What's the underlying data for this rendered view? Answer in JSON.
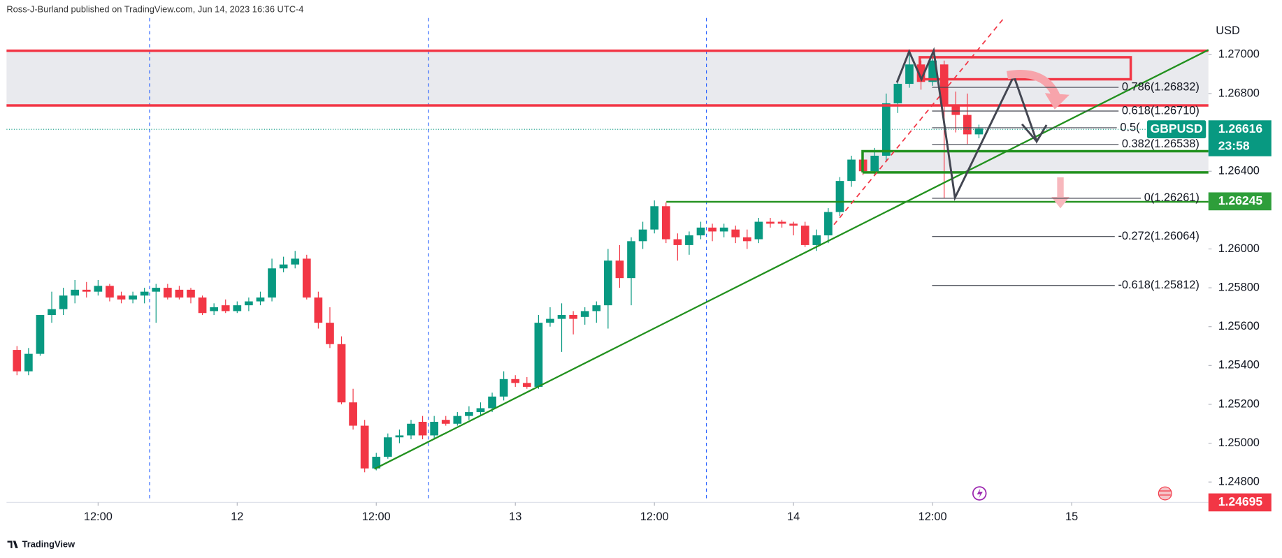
{
  "header": "Ross-J-Burland published on TradingView.com, Jun 14, 2023 16:36 UTC-4",
  "footer": "TradingView",
  "chart_data": {
    "type": "candlestick",
    "symbol": "GBPUSD",
    "currency": "USD",
    "up_color": "#089981",
    "down_color": "#f23645",
    "open": [
      1.2548,
      1.2537,
      1.2546,
      1.2566,
      1.2569,
      1.2576,
      1.2579,
      1.2578,
      1.2581,
      1.2576,
      1.2574,
      1.2576,
      1.2578,
      1.258,
      1.2579,
      1.2579,
      1.2575,
      1.2568,
      1.2571,
      1.2568,
      1.2571,
      1.2573,
      1.2575,
      1.259,
      1.2592,
      1.2595,
      1.2575,
      1.2562,
      1.2551,
      1.2521,
      1.2509,
      1.2487,
      1.2493,
      1.2503,
      1.2504,
      1.2511,
      1.2504,
      1.2512,
      1.251,
      1.2514,
      1.2516,
      1.2518,
      1.2524,
      1.2533,
      1.2531,
      1.2529,
      1.2562,
      1.2564,
      1.2566,
      1.2565,
      1.2568,
      1.2571,
      1.2594,
      1.2585,
      1.2604,
      1.261,
      1.2622,
      1.2605,
      1.2602,
      1.2607,
      1.2611,
      1.2609,
      1.261,
      1.2606,
      1.2605,
      1.2614,
      1.2614,
      1.2613,
      1.2612,
      1.2602,
      1.2607,
      1.2619,
      1.2635,
      1.2646,
      1.264,
      1.2648,
      1.2675,
      1.2685,
      1.2695,
      1.2686,
      1.2695,
      1.2674,
      1.2669,
      1.2659
    ],
    "high": [
      1.255,
      1.2549,
      1.2566,
      1.2578,
      1.258,
      1.2584,
      1.2583,
      1.2584,
      1.2582,
      1.2578,
      1.2578,
      1.258,
      1.2582,
      1.2582,
      1.2581,
      1.258,
      1.2576,
      1.2572,
      1.2574,
      1.2573,
      1.2575,
      1.2578,
      1.2595,
      1.2596,
      1.2599,
      1.2597,
      1.2578,
      1.257,
      1.2555,
      1.2528,
      1.2512,
      1.2495,
      1.2505,
      1.2507,
      1.2512,
      1.2514,
      1.2514,
      1.2514,
      1.2516,
      1.2519,
      1.2521,
      1.2526,
      1.2537,
      1.2535,
      1.2534,
      1.2566,
      1.257,
      1.2572,
      1.2568,
      1.257,
      1.2573,
      1.26,
      1.2602,
      1.2606,
      1.2614,
      1.2625,
      1.2624,
      1.2608,
      1.2609,
      1.2614,
      1.2613,
      1.2613,
      1.2612,
      1.261,
      1.2616,
      1.2616,
      1.2615,
      1.2614,
      1.2614,
      1.261,
      1.2621,
      1.2637,
      1.2648,
      1.2648,
      1.2652,
      1.268,
      1.2688,
      1.27,
      1.2697,
      1.2701,
      1.2697,
      1.2681,
      1.268,
      1.2664
    ],
    "low": [
      1.2535,
      1.2535,
      1.2545,
      1.2562,
      1.2566,
      1.2572,
      1.2575,
      1.2576,
      1.2573,
      1.2572,
      1.2572,
      1.2572,
      1.2562,
      1.2574,
      1.2574,
      1.2572,
      1.2566,
      1.2566,
      1.2567,
      1.2567,
      1.2568,
      1.2571,
      1.2573,
      1.2588,
      1.259,
      1.2574,
      1.2559,
      1.2549,
      1.252,
      1.2507,
      1.2485,
      1.2486,
      1.2492,
      1.25,
      1.2502,
      1.2502,
      1.2502,
      1.2509,
      1.2509,
      1.2512,
      1.2514,
      1.2516,
      1.2522,
      1.2529,
      1.2528,
      1.2528,
      1.256,
      1.2547,
      1.2556,
      1.2561,
      1.2562,
      1.2559,
      1.258,
      1.2571,
      1.26,
      1.2608,
      1.2603,
      1.2594,
      1.2597,
      1.2605,
      1.2604,
      1.2606,
      1.2603,
      1.26,
      1.2603,
      1.2611,
      1.2611,
      1.2607,
      1.2601,
      1.2599,
      1.2603,
      1.2617,
      1.2632,
      1.2638,
      1.2638,
      1.2645,
      1.267,
      1.2683,
      1.2682,
      1.2684,
      1.2626,
      1.266,
      1.2654,
      1.2657
    ],
    "close": [
      1.2537,
      1.2546,
      1.2566,
      1.2569,
      1.2576,
      1.2579,
      1.2578,
      1.2581,
      1.2575,
      1.2574,
      1.2576,
      1.2578,
      1.258,
      1.2575,
      1.2575,
      1.2575,
      1.2567,
      1.257,
      1.2568,
      1.2571,
      1.2573,
      1.2575,
      1.259,
      1.2592,
      1.2595,
      1.2575,
      1.2562,
      1.2551,
      1.2521,
      1.2509,
      1.2487,
      1.2493,
      1.2503,
      1.2504,
      1.251,
      1.2504,
      1.2511,
      1.251,
      1.2514,
      1.2516,
      1.2518,
      1.2524,
      1.2533,
      1.2531,
      1.2529,
      1.2562,
      1.2564,
      1.2566,
      1.2564,
      1.2568,
      1.2571,
      1.2594,
      1.2585,
      1.2604,
      1.261,
      1.2622,
      1.2605,
      1.2602,
      1.2607,
      1.2611,
      1.2609,
      1.2611,
      1.2606,
      1.2604,
      1.2614,
      1.2613,
      1.2613,
      1.2612,
      1.2602,
      1.2607,
      1.2619,
      1.2635,
      1.2646,
      1.264,
      1.2648,
      1.2675,
      1.2685,
      1.2695,
      1.2686,
      1.2697,
      1.2674,
      1.2669,
      1.2659,
      1.2662
    ],
    "xlim": [
      -0.9,
      102.8
    ],
    "xticks": [
      {
        "value": 7,
        "label": "12:00"
      },
      {
        "value": 19,
        "label": "12"
      },
      {
        "value": 31,
        "label": "12:00"
      },
      {
        "value": 43,
        "label": "13"
      },
      {
        "value": 55,
        "label": "12:00"
      },
      {
        "value": 67,
        "label": "14"
      },
      {
        "value": 79,
        "label": "12:00"
      },
      {
        "value": 91,
        "label": "15"
      }
    ],
    "ylim": [
      1.24695,
      1.27189
    ],
    "yticks": [
      {
        "value": 1.27,
        "label": "1.27000"
      },
      {
        "value": 1.268,
        "label": "1.26800"
      },
      {
        "value": 1.264,
        "label": "1.26400"
      },
      {
        "value": 1.26,
        "label": "1.26000"
      },
      {
        "value": 1.258,
        "label": "1.25800"
      },
      {
        "value": 1.256,
        "label": "1.25600"
      },
      {
        "value": 1.254,
        "label": "1.25400"
      },
      {
        "value": 1.252,
        "label": "1.25200"
      },
      {
        "value": 1.25,
        "label": "1.25000"
      },
      {
        "value": 1.248,
        "label": "1.24800"
      }
    ],
    "last_price": 1.26616,
    "countdown": "23:58",
    "price_labels": [
      {
        "value": 1.26245,
        "color": "#2e9e3a"
      },
      {
        "value": 1.24695,
        "color": "#f23645"
      }
    ],
    "fib_levels": [
      {
        "value": 1.26832,
        "label": "0.786(1.26832)"
      },
      {
        "value": 1.2671,
        "label": "0.618(1.26710)"
      },
      {
        "value": 1.26624,
        "label": "0.5("
      },
      {
        "value": 1.26538,
        "label": "0.382(1.26538)"
      },
      {
        "value": 1.26261,
        "label": "0(1.26261)"
      },
      {
        "value": 1.26064,
        "label": "-0.272(1.26064)"
      },
      {
        "value": 1.25812,
        "label": "-0.618(1.25812)"
      }
    ]
  }
}
